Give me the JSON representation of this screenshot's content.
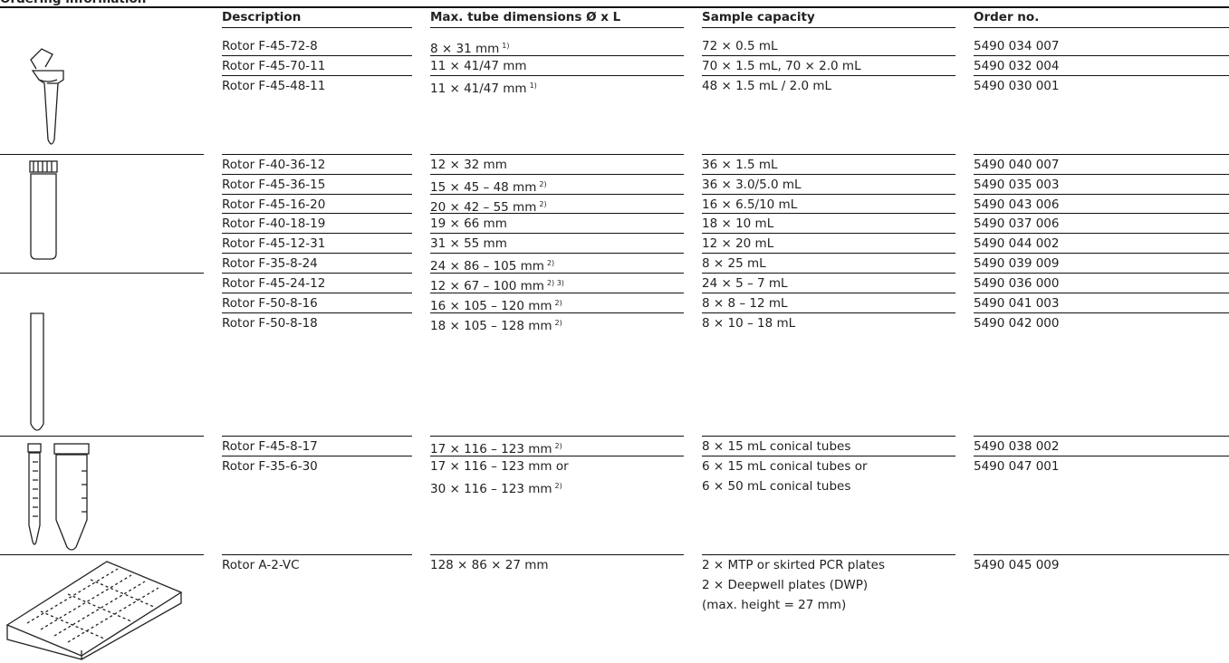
{
  "header": {
    "title": "Ordering information",
    "columns": [
      "Description",
      "Max. tube dimensions Ø x L",
      "Sample capacity",
      "Order no."
    ]
  },
  "groups": [
    {
      "rows": [
        {
          "description": "Rotor F-45-72-8",
          "dimensions": [
            "8 × 31 mm"
          ],
          "footnote": "1)",
          "capacity": [
            "72 × 0.5 mL"
          ],
          "order": "5490 034 007"
        },
        {
          "description": "Rotor F-45-70-11",
          "dimensions": [
            "11 × 41/47 mm"
          ],
          "capacity": [
            "70 × 1.5 mL, 70 × 2.0 mL"
          ],
          "order": "5490 032 004"
        },
        {
          "description": "Rotor F-45-48-11",
          "dimensions": [
            "11 × 41/47 mm"
          ],
          "footnote": "1)",
          "capacity": [
            "48 × 1.5 mL / 2.0 mL"
          ],
          "order": "5490 030 001"
        }
      ]
    },
    {
      "rows": [
        {
          "description": "Rotor F-40-36-12",
          "dimensions": [
            "12 × 32 mm"
          ],
          "capacity": [
            "36 × 1.5 mL"
          ],
          "order": "5490 040 007"
        },
        {
          "description": "Rotor F-45-36-15",
          "dimensions": [
            "15 × 45 – 48 mm"
          ],
          "footnote": "2)",
          "capacity": [
            "36 × 3.0/5.0 mL"
          ],
          "order": "5490 035 003"
        },
        {
          "description": "Rotor F-45-16-20",
          "dimensions": [
            "20 × 42 – 55 mm"
          ],
          "footnote": "2)",
          "capacity": [
            "16 × 6.5/10 mL"
          ],
          "order": "5490 043 006"
        },
        {
          "description": "Rotor F-40-18-19",
          "dimensions": [
            "19 × 66 mm"
          ],
          "capacity": [
            "18 × 10 mL"
          ],
          "order": "5490 037 006"
        },
        {
          "description": "Rotor F-45-12-31",
          "dimensions": [
            "31 × 55 mm"
          ],
          "capacity": [
            "12 × 20 mL"
          ],
          "order": "5490 044 002"
        },
        {
          "description": "Rotor F-35-8-24",
          "dimensions": [
            "24 × 86 – 105 mm"
          ],
          "footnote": "2)",
          "capacity": [
            "8 × 25 mL"
          ],
          "order": "5490 039 009"
        }
      ]
    },
    {
      "rows": [
        {
          "description": "Rotor F-45-24-12",
          "dimensions": [
            "12 × 67 – 100 mm"
          ],
          "footnote": "2) 3)",
          "capacity": [
            "24 × 5 – 7 mL"
          ],
          "order": "5490 036 000"
        },
        {
          "description": "Rotor F-50-8-16",
          "dimensions": [
            "16 × 105 – 120 mm"
          ],
          "footnote": "2)",
          "capacity": [
            "8 × 8 – 12 mL"
          ],
          "order": "5490 041 003"
        },
        {
          "description": "Rotor F-50-8-18",
          "dimensions": [
            "18 × 105 – 128 mm"
          ],
          "footnote": "2)",
          "capacity": [
            "8 × 10 – 18 mL"
          ],
          "order": "5490 042 000"
        }
      ]
    },
    {
      "rows": [
        {
          "description": "Rotor F-45-8-17",
          "dimensions": [
            "17 × 116 – 123 mm"
          ],
          "footnote": "2)",
          "capacity": [
            "8 × 15 mL conical tubes"
          ],
          "order": "5490 038 002"
        },
        {
          "description": "Rotor F-35-6-30",
          "dimensions": [
            "17 × 116 – 123 mm or",
            "30 × 116 – 123 mm"
          ],
          "footnote": "2)",
          "capacity": [
            "6 × 15 mL conical tubes or",
            "6 × 50 mL conical tubes"
          ],
          "order": "5490 047 001"
        }
      ]
    },
    {
      "rows": [
        {
          "description": "Rotor A-2-VC",
          "dimensions": [
            "128 × 86 × 27 mm"
          ],
          "capacity": [
            "2 × MTP or skirted PCR plates",
            "2 × Deepwell plates (DWP)",
            "(max. height = 27 mm)"
          ],
          "order": "5490 045 009"
        }
      ]
    }
  ]
}
